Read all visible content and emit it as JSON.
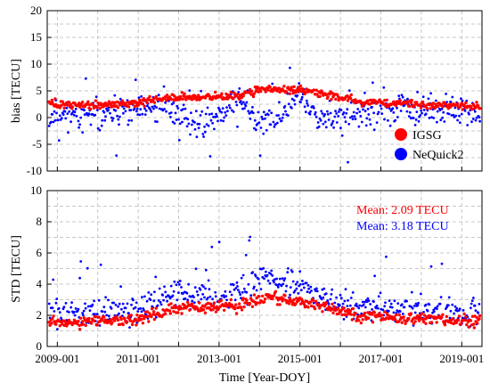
{
  "chart_data": [
    {
      "type": "scatter",
      "panel": "top",
      "ylabel": "bias [TECU]",
      "xlabel": "",
      "ylim": [
        -10,
        20
      ],
      "yticks": [
        -10,
        -5,
        0,
        5,
        10,
        15,
        20
      ],
      "xlim": [
        2008.75,
        2019.5
      ],
      "grid": true,
      "legend": {
        "placement": "bottom-right"
      },
      "series": [
        {
          "name": "IGSG",
          "color": "#ff0000",
          "x": [
            2009.0,
            2010.0,
            2011.0,
            2011.8,
            2012.5,
            2013.5,
            2014.2,
            2015.0,
            2015.5,
            2016.5,
            2017.5,
            2018.5,
            2019.4
          ],
          "y": [
            2.5,
            2.2,
            2.8,
            3.8,
            3.8,
            4.0,
            5.5,
            5.0,
            4.5,
            3.0,
            2.6,
            2.4,
            2.0
          ]
        },
        {
          "name": "NeQuick2",
          "color": "#0000ff",
          "x": [
            2009.0,
            2010.0,
            2011.0,
            2011.8,
            2012.5,
            2013.0,
            2013.5,
            2014.0,
            2014.5,
            2015.0,
            2015.5,
            2016.5,
            2017.5,
            2018.5,
            2019.4
          ],
          "y": [
            0.5,
            0.5,
            1.5,
            1.5,
            -1.5,
            0.5,
            4.0,
            -1.5,
            0.5,
            4.0,
            0.0,
            0.5,
            1.5,
            1.5,
            1.0
          ]
        }
      ]
    },
    {
      "type": "scatter",
      "panel": "bottom",
      "ylabel": "STD [TECU]",
      "xlabel": "Time [Year-DOY]",
      "ylim": [
        0,
        10
      ],
      "yticks": [
        0,
        2,
        4,
        6,
        8,
        10
      ],
      "xlim": [
        2008.75,
        2019.5
      ],
      "xticks": [
        "2009-001",
        "2011-001",
        "2013-001",
        "2015-001",
        "2017-001",
        "2019-001"
      ],
      "xtick_years": [
        2009,
        2011,
        2013,
        2015,
        2017,
        2019
      ],
      "grid": true,
      "annotations": [
        {
          "text": "Mean: 2.09 TECU",
          "color": "#ff0000"
        },
        {
          "text": "Mean: 3.18 TECU",
          "color": "#0000ff"
        }
      ],
      "series": [
        {
          "name": "IGSG",
          "color": "#ff0000",
          "x": [
            2009.0,
            2010.0,
            2011.0,
            2011.8,
            2012.5,
            2013.5,
            2014.2,
            2015.0,
            2015.5,
            2016.5,
            2017.5,
            2018.5,
            2019.4
          ],
          "y": [
            1.5,
            1.6,
            1.8,
            2.4,
            2.5,
            2.6,
            3.2,
            2.8,
            2.6,
            2.0,
            1.8,
            1.7,
            1.6
          ]
        },
        {
          "name": "NeQuick2",
          "color": "#0000ff",
          "x": [
            2009.0,
            2010.0,
            2011.0,
            2011.8,
            2012.5,
            2013.5,
            2014.2,
            2015.0,
            2015.5,
            2016.5,
            2017.5,
            2018.5,
            2019.4
          ],
          "y": [
            2.0,
            2.2,
            2.3,
            3.5,
            3.3,
            3.5,
            4.5,
            3.8,
            3.2,
            2.5,
            2.3,
            2.2,
            2.1
          ]
        }
      ]
    }
  ]
}
